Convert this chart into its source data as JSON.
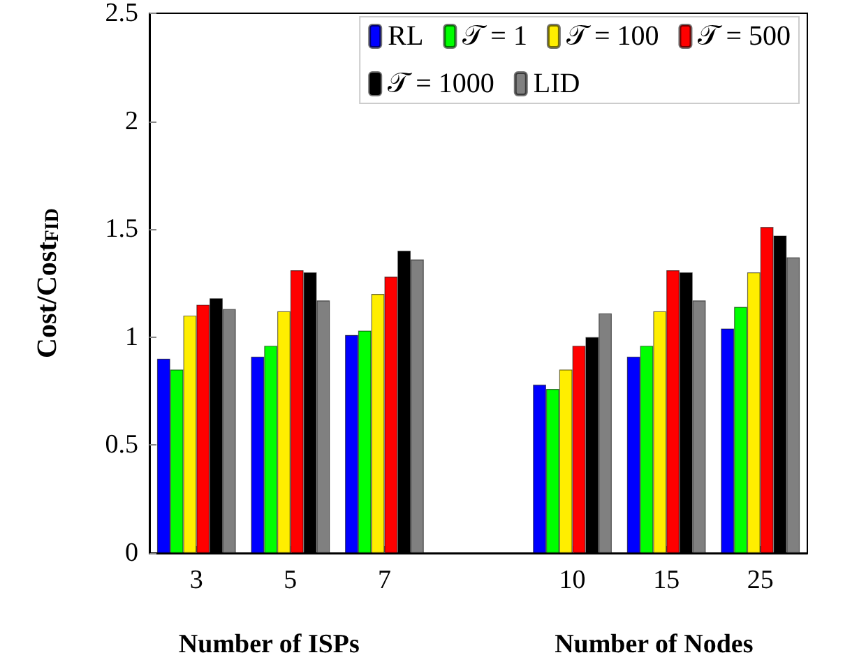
{
  "chart_data": {
    "type": "bar",
    "ylabel": "Cost/Cost$_{FID}$",
    "xlabel": "Number of ISPs",
    "annotations": [
      "Number of Nodes"
    ],
    "categories": [
      "3",
      "5",
      "7",
      null,
      "10",
      "15",
      "25"
    ],
    "series": [
      {
        "name": "RL",
        "color": "#0000ff",
        "values": [
          0.9,
          0.91,
          1.01,
          null,
          0.78,
          0.91,
          1.04
        ]
      },
      {
        "name": "𝒯 = 1",
        "color": "#00ff00",
        "values": [
          0.85,
          0.96,
          1.03,
          null,
          0.76,
          0.96,
          1.14
        ]
      },
      {
        "name": "𝒯 = 100",
        "color": "#ffee00",
        "values": [
          1.1,
          1.12,
          1.2,
          null,
          0.85,
          1.12,
          1.3
        ]
      },
      {
        "name": "𝒯 = 500",
        "color": "#ff0000",
        "values": [
          1.15,
          1.31,
          1.28,
          null,
          0.96,
          1.31,
          1.51
        ]
      },
      {
        "name": "𝒯 = 1000",
        "color": "#000000",
        "values": [
          1.18,
          1.3,
          1.4,
          null,
          1.0,
          1.3,
          1.47
        ]
      },
      {
        "name": "LID",
        "color": "#808080",
        "values": [
          1.13,
          1.17,
          1.36,
          null,
          1.11,
          1.17,
          1.37
        ]
      }
    ],
    "ylim": [
      0,
      2.5
    ],
    "yticks": [
      0,
      0.5,
      1,
      1.5,
      2,
      2.5
    ],
    "grid": false,
    "legend": "top right"
  }
}
